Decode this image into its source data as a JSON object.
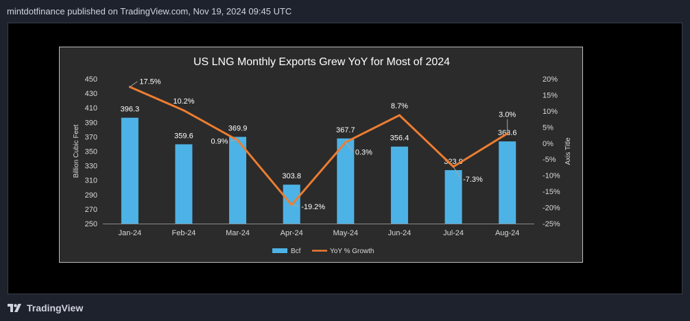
{
  "header": {
    "published_text": "mintdotfinance published on TradingView.com, Nov 19, 2024 09:45 UTC"
  },
  "footer": {
    "brand": "TradingView"
  },
  "colors": {
    "page_bg": "#1e222d",
    "frame_bg": "#000000",
    "panel_bg": "#2b2b2b",
    "bar": "#4db3e6",
    "line": "#ed7d31",
    "text": "#ffffff",
    "axis_text": "#d9d9d9"
  },
  "chart_data": {
    "type": "bar",
    "title": "US LNG Monthly Exports Grew YoY for Most of 2024",
    "categories": [
      "Jan-24",
      "Feb-24",
      "Mar-24",
      "Apr-24",
      "May-24",
      "Jun-24",
      "Jul-24",
      "Aug-24"
    ],
    "ylabel": "Billion Cubic Feet",
    "y2label": "Axis Title",
    "ylim": [
      250,
      450
    ],
    "yticks": [
      250,
      270,
      290,
      310,
      330,
      350,
      370,
      390,
      410,
      430,
      450
    ],
    "y2lim": [
      -25,
      20
    ],
    "y2ticks": [
      "-25%",
      "-20%",
      "-15%",
      "-10%",
      "-5%",
      "0%",
      "5%",
      "10%",
      "15%",
      "20%"
    ],
    "y2tick_values": [
      -25,
      -20,
      -15,
      -10,
      -5,
      0,
      5,
      10,
      15,
      20
    ],
    "series": [
      {
        "name": "Bcf",
        "kind": "bar",
        "axis": "left",
        "values": [
          396.3,
          359.6,
          369.9,
          303.8,
          367.7,
          356.4,
          323.9,
          363.6
        ],
        "labels": [
          "396.3",
          "359.6",
          "369.9",
          "303.8",
          "367.7",
          "356.4",
          "323.9",
          "363.6"
        ]
      },
      {
        "name": "YoY % Growth",
        "kind": "line",
        "axis": "right",
        "values": [
          17.5,
          10.2,
          0.9,
          -19.2,
          0.3,
          8.7,
          -7.3,
          3.0
        ],
        "labels": [
          "17.5%",
          "10.2%",
          "0.9%",
          "-19.2%",
          "0.3%",
          "8.7%",
          "-7.3%",
          "3.0%"
        ]
      }
    ],
    "legend": [
      "Bcf",
      "YoY % Growth"
    ],
    "legend_position": "bottom-center",
    "grid": false
  }
}
